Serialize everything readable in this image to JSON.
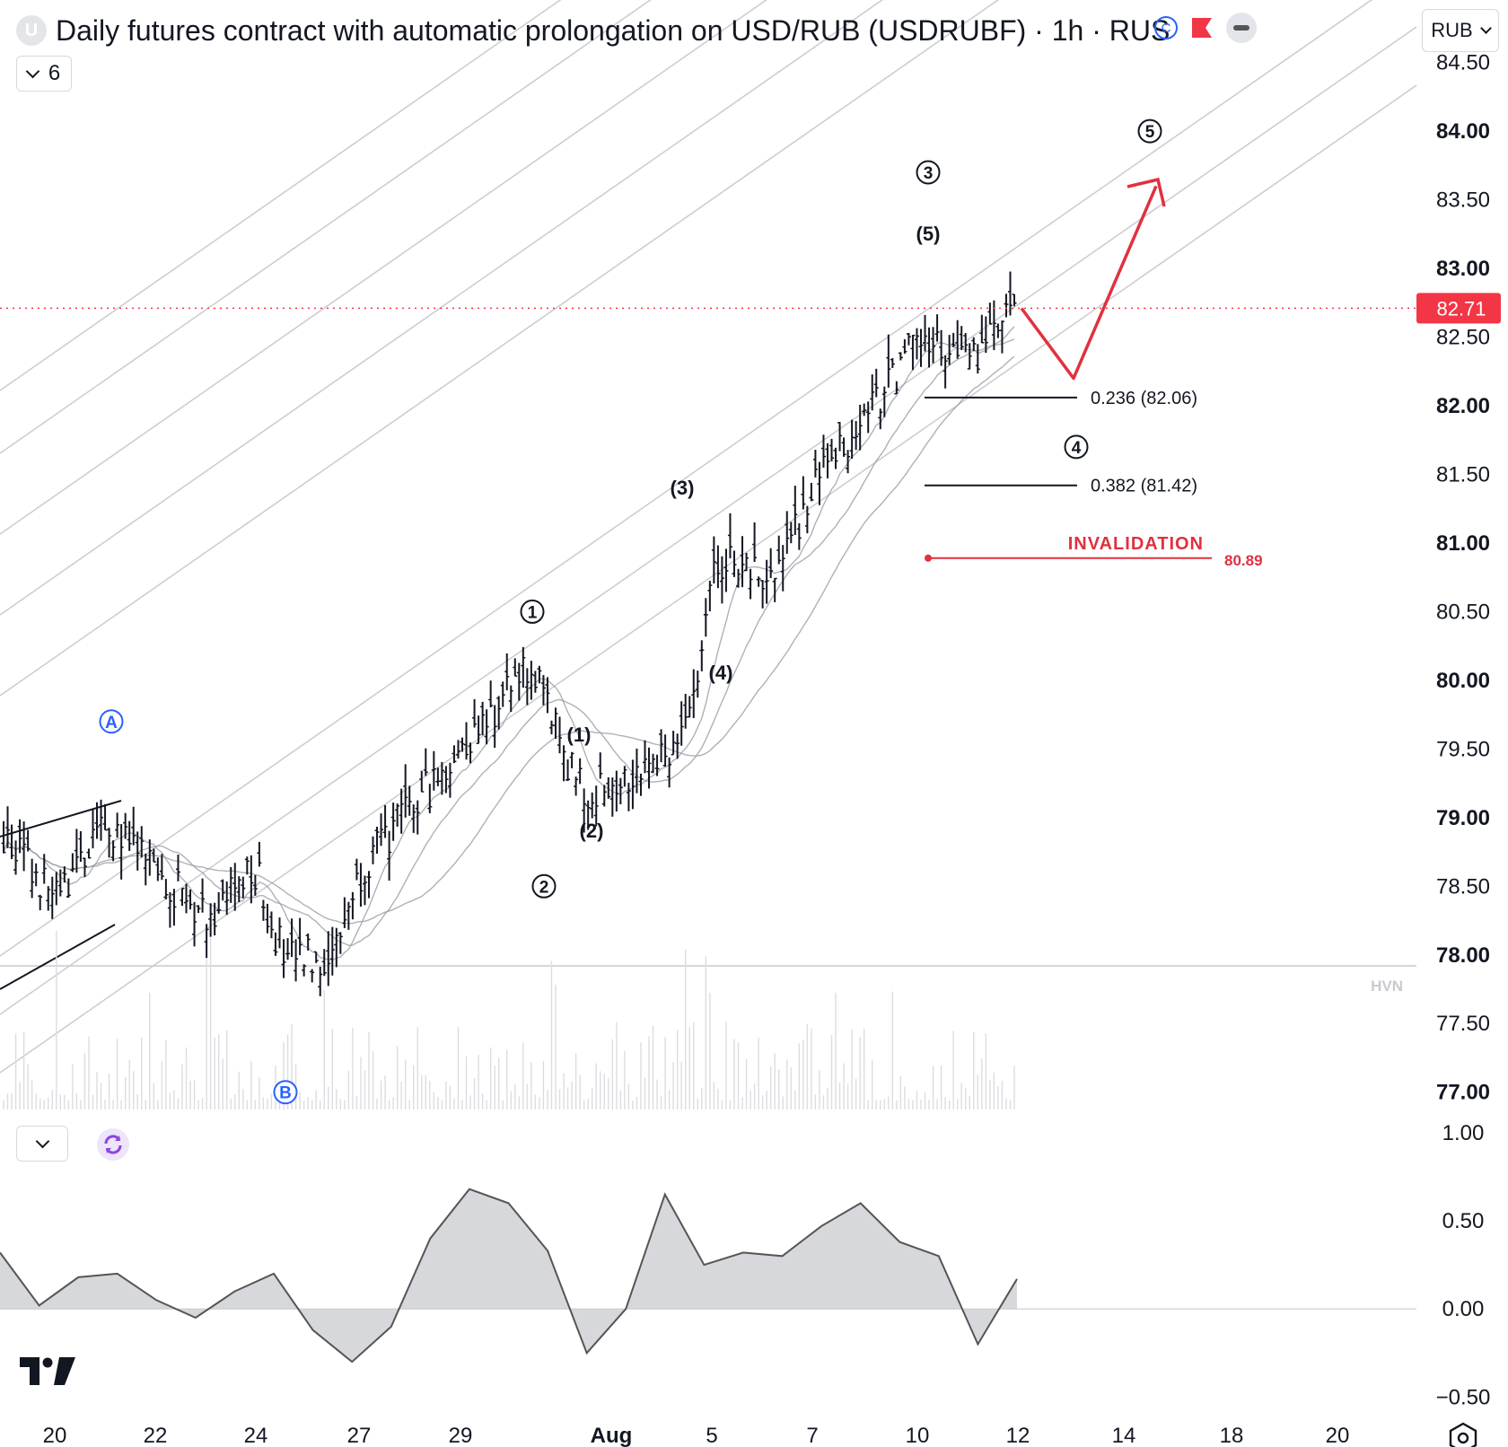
{
  "header": {
    "symbol_badge": "U",
    "title": "Daily futures contract with automatic prolongation on USD/RUB (USDRUBF) · 1h · RUS",
    "currency_icon": "C",
    "indicators_count": "6",
    "currency": "RUB"
  },
  "icons": {
    "currency": "currency-c-icon",
    "flag": "flag-icon",
    "collapse": "minus-pill-icon",
    "indicators": "chevron-down-icon",
    "sync": "sync-icon",
    "logo": "tradingview-logo-icon",
    "settings": "settings-icon"
  },
  "colors": {
    "bars": "#131722",
    "channel": "#c9cbd0",
    "moving_average": "#9a9da6",
    "projection": "#e0313f",
    "price_tag": "#f23645",
    "wave_circle_blue": "#2962ff",
    "oscillator_fill": "#c9cbd0",
    "oscillator_line": "#555555"
  },
  "chart_data": [
    {
      "type": "ohlc",
      "x_ticks": [
        "20",
        "22",
        "24",
        "27",
        "29",
        "Aug",
        "5",
        "7",
        "10",
        "12",
        "14",
        "18",
        "20"
      ],
      "y_ticks": [
        "84.50",
        "84.00",
        "83.50",
        "83.00",
        "82.50",
        "82.00",
        "81.50",
        "81.00",
        "80.50",
        "80.00",
        "79.50",
        "79.00",
        "78.50",
        "78.00",
        "77.50",
        "77.00"
      ],
      "ylim": [
        76.9,
        84.55
      ],
      "path_x": [
        "Jul 19",
        "Jul 20",
        "Jul 21",
        "Jul 22",
        "Jul 23",
        "Jul 24",
        "Jul 25",
        "Jul 26",
        "Jul 29",
        "Jul 30",
        "Jul 31",
        "Aug 1",
        "Aug 2",
        "Aug 5",
        "Aug 6",
        "Aug 7",
        "Aug 8",
        "Aug 9",
        "Aug 12"
      ],
      "price_path": [
        78.9,
        78.4,
        78.95,
        78.6,
        78.3,
        78.6,
        77.95,
        78.0,
        78.6,
        79.5,
        80.1,
        79.15,
        79.55,
        80.9,
        80.75,
        81.5,
        82.5,
        82.3,
        82.71
      ],
      "last_price": "82.71",
      "hvn_level": "77.92",
      "hvn_label": "HVN",
      "fib_levels": [
        {
          "label": "0.236 (82.06)",
          "value": 82.06
        },
        {
          "label": "0.382 (81.42)",
          "value": 81.42
        }
      ],
      "invalidation": {
        "label": "INVALIDATION",
        "value_label": "80.89",
        "value": 80.89
      },
      "wave_labels": [
        {
          "text": "A",
          "style": "circle-blue",
          "x": "Jul 20",
          "y": 79.7
        },
        {
          "text": "B",
          "style": "circle-blue",
          "x": "Jul 24",
          "y": 77.0
        },
        {
          "text": "1",
          "style": "circle",
          "x": "Jul 31",
          "y": 80.5
        },
        {
          "text": "2",
          "style": "circle",
          "x": "Jul 31",
          "y": 78.5
        },
        {
          "text": "(1)",
          "style": "plain",
          "x": "Aug 1",
          "y": 79.6
        },
        {
          "text": "(2)",
          "style": "plain",
          "x": "Aug 1",
          "y": 78.9
        },
        {
          "text": "(3)",
          "style": "plain",
          "x": "Aug 2",
          "y": 81.4
        },
        {
          "text": "(4)",
          "style": "plain",
          "x": "Aug 5",
          "y": 80.05
        },
        {
          "text": "(5)",
          "style": "plain",
          "x": "Aug 9",
          "y": 83.25
        },
        {
          "text": "3",
          "style": "circle",
          "x": "Aug 9",
          "y": 83.7
        },
        {
          "text": "4",
          "style": "circle",
          "x": "Aug 12",
          "y": 81.7
        },
        {
          "text": "5",
          "style": "circle",
          "x": "Aug 14",
          "y": 84.0
        }
      ]
    },
    {
      "type": "area",
      "y_ticks": [
        "1.00",
        "0.50",
        "0.00",
        "−0.50"
      ],
      "ylim": [
        -0.62,
        1.05
      ],
      "values": [
        0.32,
        0.02,
        0.18,
        0.2,
        0.05,
        -0.05,
        0.1,
        0.2,
        -0.12,
        -0.3,
        -0.1,
        0.4,
        0.68,
        0.6,
        0.33,
        -0.25,
        0.0,
        0.65,
        0.25,
        0.32,
        0.3,
        0.47,
        0.6,
        0.38,
        0.3,
        -0.2,
        0.17
      ]
    }
  ]
}
